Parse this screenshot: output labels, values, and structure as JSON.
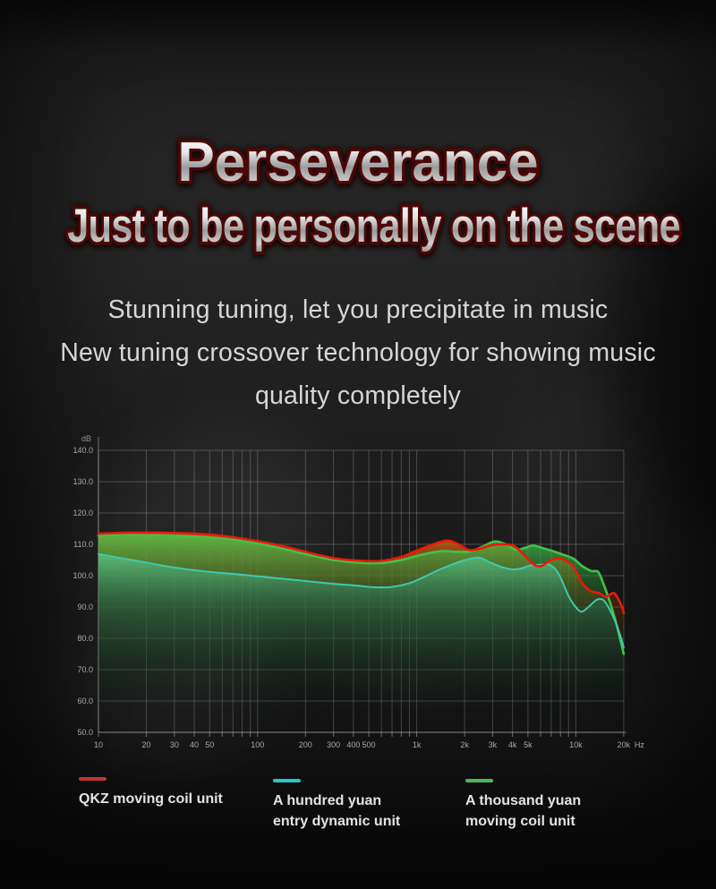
{
  "hero": {
    "title": "Perseverance",
    "subtitle": "Just to be personally on the scene",
    "tagline_lines": [
      "Stunning tuning, let you precipitate in music",
      "New tuning crossover technology for showing music",
      "quality completely"
    ]
  },
  "chart_data": {
    "type": "line",
    "x_axis": {
      "unit_label": "Hz",
      "scale": "log",
      "min": 10,
      "max": 20000,
      "ticks": [
        {
          "label": "10",
          "f": 10
        },
        {
          "label": "20",
          "f": 20
        },
        {
          "label": "30",
          "f": 30
        },
        {
          "label": "40",
          "f": 40
        },
        {
          "label": "50",
          "f": 50
        },
        {
          "label": "100",
          "f": 100
        },
        {
          "label": "200",
          "f": 200
        },
        {
          "label": "300",
          "f": 300
        },
        {
          "label": "400",
          "f": 400
        },
        {
          "label": "500",
          "f": 500
        },
        {
          "label": "1k",
          "f": 1000
        },
        {
          "label": "2k",
          "f": 2000
        },
        {
          "label": "3k",
          "f": 3000
        },
        {
          "label": "4k",
          "f": 4000
        },
        {
          "label": "5k",
          "f": 5000
        },
        {
          "label": "10k",
          "f": 10000
        },
        {
          "label": "20k",
          "f": 20000
        }
      ],
      "minor_gridlines": [
        10,
        20,
        30,
        40,
        50,
        60,
        70,
        80,
        90,
        100,
        200,
        300,
        400,
        500,
        600,
        700,
        800,
        900,
        1000,
        2000,
        3000,
        4000,
        5000,
        6000,
        7000,
        8000,
        9000,
        10000,
        20000
      ]
    },
    "y_axis": {
      "unit_label": "dB",
      "min": 50,
      "max": 140,
      "ticks": [
        {
          "label": "140.0",
          "v": 140
        },
        {
          "label": "130.0",
          "v": 130
        },
        {
          "label": "120.0",
          "v": 120
        },
        {
          "label": "110.0",
          "v": 110
        },
        {
          "label": "100.0",
          "v": 100
        },
        {
          "label": "90.0",
          "v": 90
        },
        {
          "label": "80.0",
          "v": 80
        },
        {
          "label": "70.0",
          "v": 70
        },
        {
          "label": "60.0",
          "v": 60
        },
        {
          "label": "50.0",
          "v": 50
        }
      ]
    },
    "grid": true,
    "legend_position": "bottom",
    "series": [
      {
        "name": "QKZ moving coil unit",
        "color": "#ee1808",
        "fill": [
          "rgba(224,106,22,0.85)",
          "rgba(150,66,12,0.42)",
          "rgba(70,30,8,0.08)",
          "rgba(0,0,0,0)"
        ],
        "points": [
          [
            10,
            113.4
          ],
          [
            15,
            113.7
          ],
          [
            25,
            113.7
          ],
          [
            40,
            113.4
          ],
          [
            60,
            112.7
          ],
          [
            100,
            111.0
          ],
          [
            150,
            109.2
          ],
          [
            200,
            107.6
          ],
          [
            300,
            105.6
          ],
          [
            450,
            104.7
          ],
          [
            600,
            104.7
          ],
          [
            800,
            106.0
          ],
          [
            1000,
            108.0
          ],
          [
            1300,
            110.2
          ],
          [
            1560,
            111.2
          ],
          [
            1800,
            110.2
          ],
          [
            2100,
            108.3
          ],
          [
            2400,
            108.4
          ],
          [
            3000,
            109.8
          ],
          [
            3600,
            110.0
          ],
          [
            4100,
            109.4
          ],
          [
            4700,
            106.8
          ],
          [
            5300,
            104.0
          ],
          [
            6000,
            103.0
          ],
          [
            7000,
            105.0
          ],
          [
            8000,
            105.5
          ],
          [
            9000,
            104.2
          ],
          [
            9600,
            103.0
          ],
          [
            11000,
            97.5
          ],
          [
            12500,
            95.0
          ],
          [
            14000,
            94.5
          ],
          [
            15500,
            93.2
          ],
          [
            17200,
            94.5
          ],
          [
            18500,
            92.5
          ],
          [
            19500,
            90.0
          ],
          [
            20000,
            88.0
          ]
        ]
      },
      {
        "name": "A thousand yuan moving coil unit",
        "color": "#3fc24a",
        "fill": [
          "rgba(70,205,80,0.8)",
          "rgba(34,130,48,0.38)",
          "rgba(10,50,18,0.05)",
          "rgba(0,0,0,0)"
        ],
        "points": [
          [
            10,
            112.8
          ],
          [
            20,
            112.9
          ],
          [
            40,
            112.5
          ],
          [
            70,
            111.5
          ],
          [
            100,
            110.3
          ],
          [
            150,
            108.4
          ],
          [
            200,
            106.9
          ],
          [
            300,
            105.0
          ],
          [
            450,
            104.1
          ],
          [
            600,
            104.0
          ],
          [
            800,
            105.0
          ],
          [
            1000,
            106.3
          ],
          [
            1400,
            107.8
          ],
          [
            1800,
            107.6
          ],
          [
            2200,
            107.8
          ],
          [
            2600,
            109.3
          ],
          [
            3100,
            110.9
          ],
          [
            3600,
            110.1
          ],
          [
            4200,
            108.3
          ],
          [
            4800,
            108.9
          ],
          [
            5400,
            109.6
          ],
          [
            6200,
            108.8
          ],
          [
            7100,
            107.9
          ],
          [
            8000,
            107.0
          ],
          [
            9600,
            105.5
          ],
          [
            11000,
            103.0
          ],
          [
            12500,
            101.5
          ],
          [
            13800,
            101.2
          ],
          [
            15000,
            97.0
          ],
          [
            16500,
            91.0
          ],
          [
            18000,
            84.5
          ],
          [
            20000,
            75.0
          ]
        ]
      },
      {
        "name": "A hundred yuan entry dynamic unit",
        "color": "#3ec9b0",
        "fill": [
          "rgba(90,235,180,0.5)",
          "rgba(30,120,85,0.4)",
          "rgba(12,50,34,0.2)",
          "rgba(0,0,0,0)"
        ],
        "points": [
          [
            10,
            106.9
          ],
          [
            15,
            105.3
          ],
          [
            20,
            104.2
          ],
          [
            30,
            102.6
          ],
          [
            50,
            101.2
          ],
          [
            80,
            100.3
          ],
          [
            120,
            99.4
          ],
          [
            200,
            98.3
          ],
          [
            300,
            97.4
          ],
          [
            400,
            96.9
          ],
          [
            550,
            96.3
          ],
          [
            700,
            96.4
          ],
          [
            900,
            97.6
          ],
          [
            1100,
            99.5
          ],
          [
            1400,
            102.0
          ],
          [
            1800,
            104.2
          ],
          [
            2200,
            105.5
          ],
          [
            2500,
            105.7
          ],
          [
            2900,
            104.2
          ],
          [
            3400,
            102.8
          ],
          [
            4000,
            102.0
          ],
          [
            4600,
            102.4
          ],
          [
            5200,
            103.3
          ],
          [
            6000,
            103.5
          ],
          [
            6600,
            103.7
          ],
          [
            7300,
            102.5
          ],
          [
            8000,
            99.5
          ],
          [
            9000,
            93.5
          ],
          [
            9800,
            90.5
          ],
          [
            10800,
            88.5
          ],
          [
            12000,
            90.0
          ],
          [
            13500,
            92.3
          ],
          [
            14800,
            92.3
          ],
          [
            16000,
            90.0
          ],
          [
            17500,
            86.0
          ],
          [
            19000,
            81.0
          ],
          [
            20000,
            77.0
          ]
        ]
      }
    ],
    "legend": [
      {
        "swatch_color": "#c43434",
        "label_line1": "QKZ moving coil unit",
        "label_line2": ""
      },
      {
        "swatch_color": "#2bc4c4",
        "label_line1": "A hundred yuan",
        "label_line2": "entry dynamic unit"
      },
      {
        "swatch_color": "#4bb856",
        "label_line1": "A thousand yuan",
        "label_line2": "moving coil unit"
      }
    ]
  }
}
